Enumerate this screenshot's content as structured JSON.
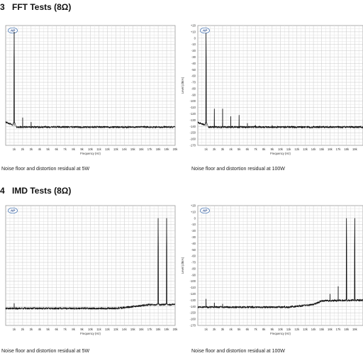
{
  "sections": [
    {
      "number": "3",
      "title": "FFT Tests (8Ω)"
    },
    {
      "number": "4",
      "title": "IMD Tests (8Ω)"
    }
  ],
  "captions": [
    "Noise floor and distortion residual at 5W",
    "Noise floor and distortion residual at 100W",
    "Noise floor and distortion residual at 5W",
    "Noise floor and distortion residual at 100W"
  ],
  "chart_data": [
    {
      "type": "line",
      "logo": "AP",
      "xlabel": "Frequency (Hz)",
      "ylabel": "",
      "xlim": [
        0,
        20000
      ],
      "ylim": [
        -170,
        20
      ],
      "x_tick_labels": [
        "1k",
        "2k",
        "3k",
        "4k",
        "5k",
        "6k",
        "7k",
        "8k",
        "9k",
        "10k",
        "11k",
        "12k",
        "13k",
        "14k",
        "15k",
        "16k",
        "17k",
        "18k",
        "19k",
        "20k"
      ],
      "y_tick_labels": [],
      "grid": true,
      "series": [
        {
          "noise_floor": -141,
          "skirt_start": -133,
          "peaks": [
            {
              "x": 1000,
              "y": 10
            },
            {
              "x": 2000,
              "y": -126
            },
            {
              "x": 3000,
              "y": -133
            }
          ],
          "noise_tilt": []
        }
      ]
    },
    {
      "type": "line",
      "logo": "AP",
      "xlabel": "Frequency (Hz)",
      "ylabel": "Level (dBrA)",
      "xlim": [
        0,
        20000
      ],
      "ylim": [
        -170,
        20
      ],
      "x_tick_labels": [
        "1k",
        "2k",
        "3k",
        "4k",
        "5k",
        "6k",
        "7k",
        "8k",
        "9k",
        "10k",
        "11k",
        "12k",
        "13k",
        "14k",
        "15k",
        "16k",
        "17k",
        "18k",
        "19k"
      ],
      "y_tick_labels": [
        "+20",
        "+10",
        "0",
        "-10",
        "-20",
        "-30",
        "-40",
        "-50",
        "-60",
        "-70",
        "-80",
        "-90",
        "-100",
        "-110",
        "-120",
        "-130",
        "-140",
        "-150",
        "-160",
        "-170"
      ],
      "grid": true,
      "series": [
        {
          "noise_floor": -141,
          "skirt_start": -133,
          "peaks": [
            {
              "x": 1000,
              "y": 8
            },
            {
              "x": 2000,
              "y": -112
            },
            {
              "x": 3000,
              "y": -112
            },
            {
              "x": 4000,
              "y": -124
            },
            {
              "x": 5000,
              "y": -122
            },
            {
              "x": 6000,
              "y": -135
            },
            {
              "x": 7000,
              "y": -138
            },
            {
              "x": 9000,
              "y": -138
            }
          ],
          "noise_tilt": []
        }
      ]
    },
    {
      "type": "line",
      "logo": "AP",
      "xlabel": "Frequency (Hz)",
      "ylabel": "",
      "xlim": [
        0,
        20000
      ],
      "ylim": [
        -170,
        20
      ],
      "x_tick_labels": [
        "1k",
        "2k",
        "3k",
        "4k",
        "5k",
        "6k",
        "7k",
        "8k",
        "9k",
        "10k",
        "11k",
        "12k",
        "13k",
        "14k",
        "15k",
        "16k",
        "17k",
        "18k",
        "19k",
        "20k"
      ],
      "y_tick_labels": [],
      "grid": true,
      "series": [
        {
          "noise_floor": -143,
          "skirt_start": -143,
          "peaks": [
            {
              "x": 1000,
              "y": -135
            },
            {
              "x": 18000,
              "y": 0
            },
            {
              "x": 19000,
              "y": 0
            }
          ],
          "noise_tilt": [
            {
              "x": 13000,
              "y": -143
            },
            {
              "x": 15000,
              "y": -140
            },
            {
              "x": 17000,
              "y": -137
            },
            {
              "x": 20000,
              "y": -137
            }
          ]
        }
      ]
    },
    {
      "type": "line",
      "logo": "AP",
      "xlabel": "Frequency (Hz)",
      "ylabel": "Level (dBrA)",
      "xlim": [
        0,
        20000
      ],
      "ylim": [
        -170,
        20
      ],
      "x_tick_labels": [
        "1k",
        "2k",
        "3k",
        "4k",
        "5k",
        "6k",
        "7k",
        "8k",
        "9k",
        "10k",
        "11k",
        "12k",
        "13k",
        "14k",
        "15k",
        "16k",
        "17k",
        "18k",
        "19k"
      ],
      "y_tick_labels": [
        "+20",
        "+10",
        "0",
        "-10",
        "-20",
        "-30",
        "-40",
        "-50",
        "-60",
        "-70",
        "-80",
        "-90",
        "-100",
        "-110",
        "-120",
        "-130",
        "-140",
        "-150",
        "-160",
        "-170"
      ],
      "grid": true,
      "series": [
        {
          "noise_floor": -141,
          "skirt_start": -141,
          "peaks": [
            {
              "x": 1000,
              "y": -128
            },
            {
              "x": 2000,
              "y": -134
            },
            {
              "x": 3000,
              "y": -136
            },
            {
              "x": 16000,
              "y": -120
            },
            {
              "x": 17000,
              "y": -108
            },
            {
              "x": 18000,
              "y": 0
            },
            {
              "x": 19000,
              "y": 0
            }
          ],
          "noise_tilt": [
            {
              "x": 11000,
              "y": -141
            },
            {
              "x": 14000,
              "y": -137
            },
            {
              "x": 15000,
              "y": -131
            },
            {
              "x": 19000,
              "y": -130
            }
          ]
        }
      ]
    }
  ]
}
